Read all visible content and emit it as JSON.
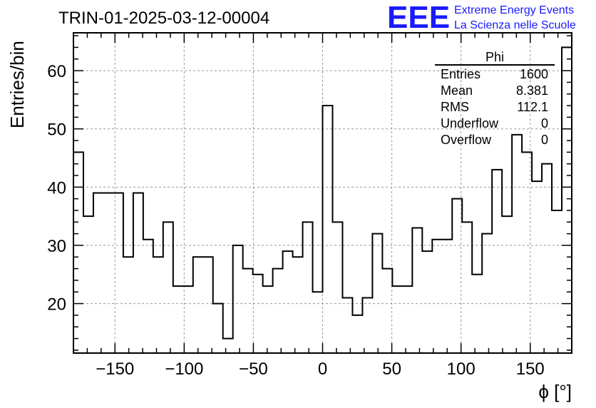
{
  "chart_data": {
    "type": "histogram",
    "title": "TRIN-01-2025-03-12-00004",
    "xlabel": "ϕ [°]",
    "ylabel": "Entries/bin",
    "xlim": [
      -180,
      180
    ],
    "ylim": [
      11.5,
      66.5
    ],
    "grid": true,
    "bin_width": 7.2,
    "x_start": -180,
    "x_ticks": [
      -150,
      -100,
      -50,
      0,
      50,
      100,
      150
    ],
    "x_tick_labels": [
      "−150",
      "−100",
      "−50",
      "0",
      "50",
      "100",
      "150"
    ],
    "y_ticks": [
      20,
      30,
      40,
      50,
      60
    ],
    "y_tick_labels": [
      "20",
      "30",
      "40",
      "50",
      "60"
    ],
    "values": [
      46,
      35,
      39,
      39,
      39,
      28,
      39,
      31,
      28,
      34,
      23,
      23,
      28,
      28,
      20,
      14,
      30,
      26,
      25,
      23,
      26,
      29,
      28,
      34,
      22,
      54,
      34,
      21,
      18,
      21,
      32,
      26,
      23,
      23,
      33,
      29,
      31,
      31,
      38,
      34,
      25,
      32,
      43,
      35,
      49,
      46,
      41,
      44,
      36,
      64
    ],
    "stats": {
      "name": "Phi",
      "rows": [
        {
          "label": "Entries",
          "value": "1600"
        },
        {
          "label": "Mean",
          "value": "8.381"
        },
        {
          "label": "RMS",
          "value": "112.1"
        },
        {
          "label": "Underflow",
          "value": "0"
        },
        {
          "label": "Overflow",
          "value": "0"
        }
      ]
    }
  },
  "logo": {
    "text": "EEE",
    "line1": "Extreme Energy Events",
    "line2": "La Scienza nelle Scuole",
    "color": "#1a1aff"
  }
}
